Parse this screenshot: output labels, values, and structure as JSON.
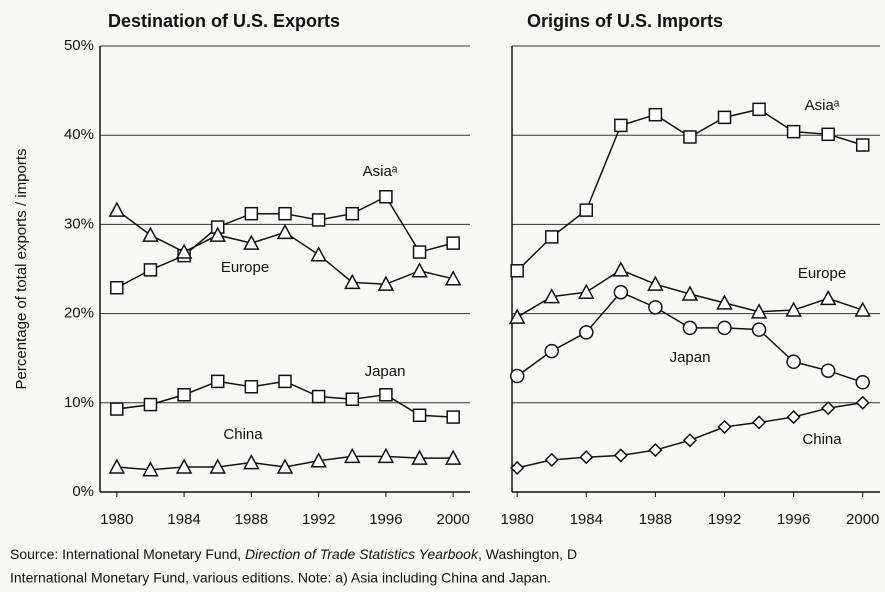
{
  "y_label": "Percentage of total exports / imports",
  "source": {
    "line1": [
      "Source: International Monetary Fund, ",
      "Direction of Trade Statistics Yearbook",
      ", Washington, D"
    ],
    "line2": "International Monetary Fund, various editions. Note: a) Asia including China and Japan."
  },
  "chart_data": [
    {
      "type": "line",
      "title": "Destination of U.S. Exports",
      "x": [
        1980,
        1982,
        1984,
        1986,
        1988,
        1990,
        1992,
        1994,
        1996,
        1998,
        2000
      ],
      "xlim": [
        1979,
        2001
      ],
      "xticks": [
        1980,
        1984,
        1988,
        1992,
        1996,
        2000
      ],
      "ylim": [
        0,
        50
      ],
      "yticks": [
        {
          "value": 0,
          "label": "0%"
        },
        {
          "value": 10,
          "label": "10%"
        },
        {
          "value": 20,
          "label": "20%"
        },
        {
          "value": 30,
          "label": "30%"
        },
        {
          "value": 40,
          "label": "40%"
        },
        {
          "value": 50,
          "label": "50%"
        }
      ],
      "grid": true,
      "series": [
        {
          "name": "Asiaᵃ",
          "color": "#111",
          "marker": "square",
          "values": [
            22.9,
            24.9,
            26.5,
            29.7,
            31.2,
            31.2,
            30.5,
            31.2,
            33.1,
            26.9,
            27.9
          ]
        },
        {
          "name": "Europe",
          "color": "#111",
          "marker": "triangle",
          "values": [
            31.6,
            28.8,
            26.9,
            28.8,
            27.9,
            29.1,
            26.6,
            23.5,
            23.3,
            24.8,
            23.9
          ]
        },
        {
          "name": "Japan",
          "color": "#111",
          "marker": "square",
          "values": [
            9.3,
            9.8,
            10.9,
            12.4,
            11.8,
            12.4,
            10.7,
            10.4,
            10.9,
            8.6,
            8.4
          ]
        },
        {
          "name": "China",
          "color": "#111",
          "marker": "triangle",
          "values": [
            2.8,
            2.5,
            2.8,
            2.8,
            3.3,
            2.8,
            3.5,
            4.0,
            4.0,
            3.8,
            3.8
          ]
        }
      ]
    },
    {
      "type": "line",
      "title": "Origins of U.S. Imports",
      "x": [
        1980,
        1982,
        1984,
        1986,
        1988,
        1990,
        1992,
        1994,
        1996,
        1998,
        2000
      ],
      "xlim": [
        1979.7,
        2001
      ],
      "xticks": [
        1980,
        1984,
        1988,
        1992,
        1996,
        2000
      ],
      "ylim": [
        0,
        50
      ],
      "yticks": [
        0,
        10,
        20,
        30,
        40,
        50
      ],
      "y_tick_labels": false,
      "grid": true,
      "series": [
        {
          "name": "Asiaᵃ",
          "color": "#111",
          "marker": "square",
          "values": [
            24.8,
            28.6,
            31.6,
            41.1,
            42.3,
            39.8,
            42.0,
            42.9,
            40.4,
            40.1,
            38.9
          ]
        },
        {
          "name": "Europe",
          "color": "#111",
          "marker": "triangle",
          "values": [
            19.6,
            21.9,
            22.4,
            24.9,
            23.3,
            22.2,
            21.2,
            20.2,
            20.4,
            21.7,
            20.4
          ]
        },
        {
          "name": "Japan",
          "color": "#111",
          "marker": "circle",
          "values": [
            13.0,
            15.8,
            17.9,
            22.4,
            20.7,
            18.4,
            18.4,
            18.2,
            14.6,
            13.6,
            12.3
          ]
        },
        {
          "name": "China",
          "color": "#111",
          "marker": "diamond",
          "values": [
            2.7,
            3.6,
            3.9,
            4.1,
            4.7,
            5.8,
            7.3,
            7.8,
            8.4,
            9.4,
            10.0
          ]
        }
      ]
    }
  ]
}
